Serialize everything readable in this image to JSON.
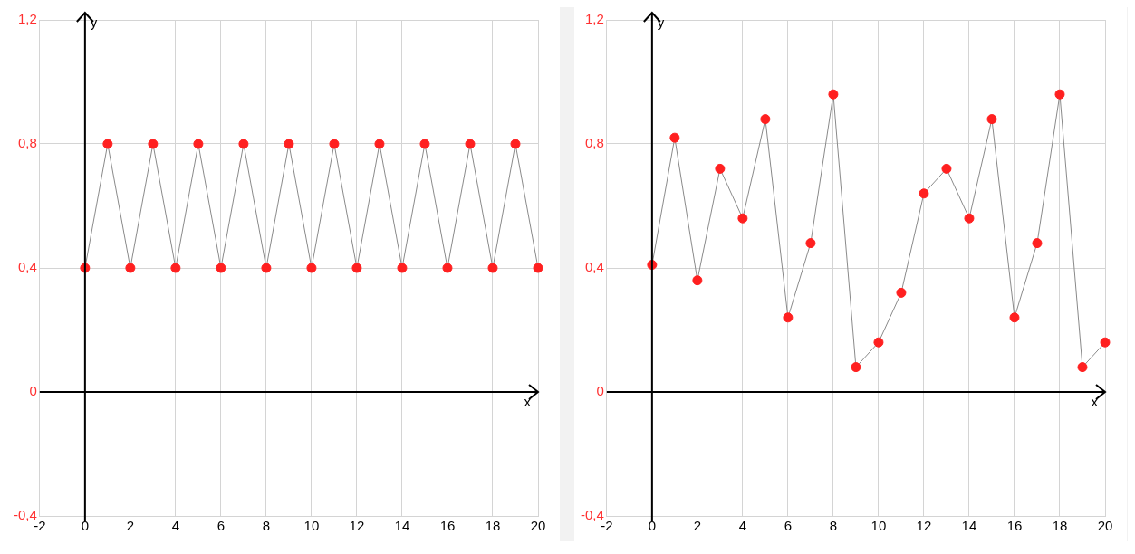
{
  "chart_data": [
    {
      "type": "line",
      "xlabel": "x",
      "ylabel": "y",
      "x": [
        0,
        1,
        2,
        3,
        4,
        5,
        6,
        7,
        8,
        9,
        10,
        11,
        12,
        13,
        14,
        15,
        16,
        17,
        18,
        19,
        20
      ],
      "series": [
        {
          "color": "#ff2020",
          "values": [
            0.4,
            0.8,
            0.4,
            0.8,
            0.4,
            0.8,
            0.4,
            0.8,
            0.4,
            0.8,
            0.4,
            0.8,
            0.4,
            0.8,
            0.4,
            0.8,
            0.4,
            0.8,
            0.4,
            0.8,
            0.4
          ]
        }
      ],
      "xlim": [
        -2,
        20
      ],
      "ylim": [
        -0.4,
        1.2
      ],
      "xticks": [
        -2,
        0,
        2,
        4,
        6,
        8,
        10,
        12,
        14,
        16,
        18,
        20
      ],
      "yticks": [
        {
          "value": -0.4,
          "label": "-0,4"
        },
        0,
        {
          "value": 0.4,
          "label": "0,4"
        },
        {
          "value": 0.8,
          "label": "0,8"
        },
        {
          "value": 1.2,
          "label": "1,2"
        }
      ],
      "grid": true,
      "legend": false,
      "marker": "circle",
      "line_style": "solid"
    },
    {
      "type": "line",
      "xlabel": "x",
      "ylabel": "y",
      "x": [
        0,
        1,
        2,
        3,
        4,
        5,
        6,
        7,
        8,
        9,
        10,
        11,
        12,
        13,
        14,
        15,
        16,
        17,
        18,
        19,
        20
      ],
      "series": [
        {
          "color": "#ff2020",
          "values": [
            0.41,
            0.82,
            0.36,
            0.72,
            0.56,
            0.88,
            0.24,
            0.48,
            0.96,
            0.08,
            0.16,
            0.32,
            0.64,
            0.72,
            0.56,
            0.88,
            0.24,
            0.48,
            0.96,
            0.08,
            0.16
          ]
        }
      ],
      "xlim": [
        -2,
        20
      ],
      "ylim": [
        -0.4,
        1.2
      ],
      "xticks": [
        -2,
        0,
        2,
        4,
        6,
        8,
        10,
        12,
        14,
        16,
        18,
        20
      ],
      "yticks": [
        {
          "value": -0.4,
          "label": "-0,4"
        },
        0,
        {
          "value": 0.4,
          "label": "0,4"
        },
        {
          "value": 0.8,
          "label": "0,8"
        },
        {
          "value": 1.2,
          "label": "1,2"
        }
      ],
      "grid": true,
      "legend": false,
      "marker": "circle",
      "line_style": "solid"
    }
  ]
}
